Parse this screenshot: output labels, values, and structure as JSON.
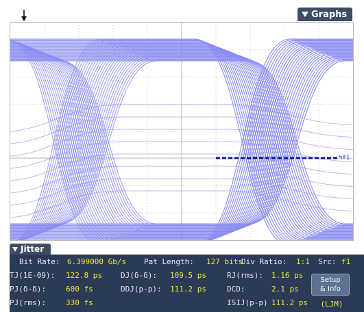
{
  "graphs_tab": {
    "label": "Graphs",
    "icon": "triangle-down-icon"
  },
  "trigger_marker": {
    "icon": "down-arrow-icon"
  },
  "eye": {
    "trace_color": "#8a8cf0",
    "dashed_line_color": "#0b1a8c",
    "marker_label": "f1"
  },
  "jitter": {
    "tab_label": "Jitter",
    "bit_rate_label": "Bit Rate:",
    "bit_rate_value": "6.399000 Gb/s",
    "pat_length_label": "Pat Length:",
    "pat_length_value": "127 bits",
    "div_ratio_label": "Div Ratio:",
    "div_ratio_value": "1:1",
    "src_label": "Src:",
    "src_value": "f1",
    "tj_label": "TJ(1E-09):",
    "tj_value": "122.8 ps",
    "dj_label": "DJ(δ-δ):",
    "dj_value": "109.5 ps",
    "rj_label": "RJ(rms):",
    "rj_value": "1.16 ps",
    "pj_dd_label": "PJ(δ-δ):",
    "pj_dd_value": "600 fs",
    "ddj_label": "DDJ(p-p):",
    "ddj_value": "111.2 ps",
    "dcd_label": "DCD:",
    "dcd_value": "2.1 ps",
    "pj_rms_label": "PJ(rms):",
    "pj_rms_value": "330 fs",
    "isij_label": "ISIJ(p-p)",
    "isij_value": "111.2 ps",
    "setup_line1": "Setup",
    "setup_line2": "& Info",
    "ljm_label": "(LJM)"
  }
}
